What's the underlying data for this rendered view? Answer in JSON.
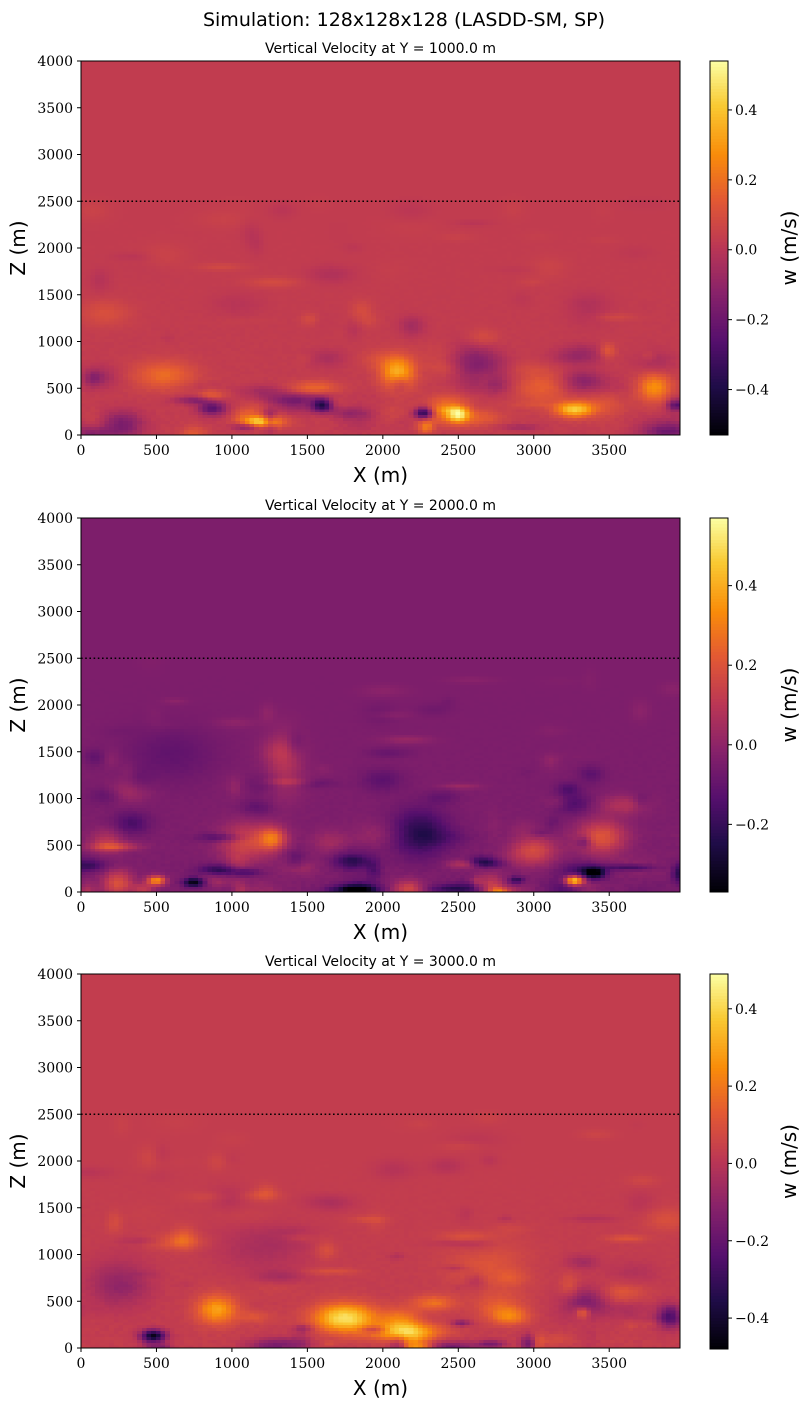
{
  "figure_title": "Simulation: 128x128x128 (LASDD-SM, SP)",
  "colors": {
    "colormap": "inferno",
    "reference_line": "#000000"
  },
  "chart_data": [
    {
      "type": "heatmap",
      "title": "Vertical Velocity at Y = 1000.0 m",
      "xlabel": "X (m)",
      "ylabel": "Z (m)",
      "colorbar_label": "w (m/s)",
      "xlim": [
        0,
        3969
      ],
      "ylim": [
        0,
        4000
      ],
      "xticks": [
        0,
        500,
        1000,
        1500,
        2000,
        2500,
        3000,
        3500
      ],
      "yticks": [
        0,
        500,
        1000,
        1500,
        2000,
        2500,
        3000,
        3500,
        4000
      ],
      "clim": [
        -0.53,
        0.54
      ],
      "cbar_ticks": [
        -0.4,
        -0.2,
        0.0,
        0.2,
        0.4
      ],
      "cbar_tick_labels": [
        "−0.4",
        "−0.2",
        "0.0",
        "0.2",
        "0.4"
      ],
      "reference_line_z": 2500,
      "seed": 11,
      "field": {
        "upper_value": 0.03,
        "boundary_layer_top": 2500,
        "features": [
          {
            "x": 2100,
            "z": 680,
            "sx": 110,
            "sz": 170,
            "w": 0.42
          },
          {
            "x": 1200,
            "z": 150,
            "sx": 130,
            "sz": 60,
            "w": 0.45
          },
          {
            "x": 2500,
            "z": 220,
            "sx": 70,
            "sz": 80,
            "w": 0.4
          },
          {
            "x": 3270,
            "z": 280,
            "sx": 120,
            "sz": 80,
            "w": 0.42
          },
          {
            "x": 3800,
            "z": 520,
            "sx": 110,
            "sz": 150,
            "w": 0.3
          },
          {
            "x": 1600,
            "z": 330,
            "sx": 70,
            "sz": 70,
            "w": -0.5
          },
          {
            "x": 2270,
            "z": 240,
            "sx": 60,
            "sz": 60,
            "w": -0.5
          },
          {
            "x": 870,
            "z": 300,
            "sx": 90,
            "sz": 80,
            "w": -0.35
          },
          {
            "x": 2600,
            "z": 800,
            "sx": 150,
            "sz": 200,
            "w": -0.2
          },
          {
            "x": 1450,
            "z": 380,
            "sx": 220,
            "sz": 70,
            "w": -0.25
          },
          {
            "x": 550,
            "z": 650,
            "sx": 200,
            "sz": 150,
            "w": 0.2
          },
          {
            "x": 3050,
            "z": 520,
            "sx": 180,
            "sz": 180,
            "w": 0.15
          }
        ]
      }
    },
    {
      "type": "heatmap",
      "title": "Vertical Velocity at Y = 2000.0 m",
      "xlabel": "X (m)",
      "ylabel": "Z (m)",
      "colorbar_label": "w (m/s)",
      "xlim": [
        0,
        3969
      ],
      "ylim": [
        0,
        4000
      ],
      "xticks": [
        0,
        500,
        1000,
        1500,
        2000,
        2500,
        3000,
        3500
      ],
      "yticks": [
        0,
        500,
        1000,
        1500,
        2000,
        2500,
        3000,
        3500,
        4000
      ],
      "clim": [
        -0.37,
        0.57
      ],
      "cbar_ticks": [
        -0.2,
        0.0,
        0.2,
        0.4
      ],
      "cbar_tick_labels": [
        "−0.2",
        "0.0",
        "0.2",
        "0.4"
      ],
      "reference_line_z": 2500,
      "seed": 23,
      "field": {
        "upper_value": -0.04,
        "boundary_layer_top": 2500,
        "features": [
          {
            "x": 3270,
            "z": 130,
            "sx": 60,
            "sz": 50,
            "w": 0.55
          },
          {
            "x": 500,
            "z": 130,
            "sx": 60,
            "sz": 50,
            "w": 0.4
          },
          {
            "x": 1350,
            "z": 1400,
            "sx": 120,
            "sz": 350,
            "w": 0.2
          },
          {
            "x": 1100,
            "z": 550,
            "sx": 180,
            "sz": 200,
            "w": 0.25
          },
          {
            "x": 3450,
            "z": 600,
            "sx": 160,
            "sz": 180,
            "w": 0.3
          },
          {
            "x": 2250,
            "z": 650,
            "sx": 180,
            "sz": 250,
            "w": -0.25
          },
          {
            "x": 3400,
            "z": 210,
            "sx": 70,
            "sz": 60,
            "w": -0.35
          },
          {
            "x": 750,
            "z": 110,
            "sx": 70,
            "sz": 50,
            "w": -0.32
          },
          {
            "x": 600,
            "z": 1500,
            "sx": 300,
            "sz": 300,
            "w": -0.12
          },
          {
            "x": 3000,
            "z": 450,
            "sx": 150,
            "sz": 150,
            "w": 0.25
          },
          {
            "x": 1800,
            "z": 350,
            "sx": 120,
            "sz": 100,
            "w": -0.22
          }
        ]
      }
    },
    {
      "type": "heatmap",
      "title": "Vertical Velocity at Y = 3000.0 m",
      "xlabel": "X (m)",
      "ylabel": "Z (m)",
      "colorbar_label": "w (m/s)",
      "xlim": [
        0,
        3969
      ],
      "ylim": [
        0,
        4000
      ],
      "xticks": [
        0,
        500,
        1000,
        1500,
        2000,
        2500,
        3000,
        3500
      ],
      "yticks": [
        0,
        500,
        1000,
        1500,
        2000,
        2500,
        3000,
        3500,
        4000
      ],
      "clim": [
        -0.48,
        0.49
      ],
      "cbar_ticks": [
        -0.4,
        -0.2,
        0.0,
        0.2,
        0.4
      ],
      "cbar_tick_labels": [
        "−0.4",
        "−0.2",
        "0.0",
        "0.2",
        "0.4"
      ],
      "reference_line_z": 2500,
      "seed": 37,
      "field": {
        "upper_value": 0.03,
        "boundary_layer_top": 2500,
        "features": [
          {
            "x": 1750,
            "z": 330,
            "sx": 200,
            "sz": 150,
            "w": 0.45
          },
          {
            "x": 2150,
            "z": 180,
            "sx": 220,
            "sz": 90,
            "w": 0.35
          },
          {
            "x": 900,
            "z": 420,
            "sx": 130,
            "sz": 150,
            "w": 0.3
          },
          {
            "x": 480,
            "z": 140,
            "sx": 80,
            "sz": 60,
            "w": -0.45
          },
          {
            "x": 3900,
            "z": 350,
            "sx": 80,
            "sz": 120,
            "w": -0.3
          },
          {
            "x": 3350,
            "z": 500,
            "sx": 150,
            "sz": 150,
            "w": -0.2
          },
          {
            "x": 250,
            "z": 700,
            "sx": 200,
            "sz": 250,
            "w": -0.15
          },
          {
            "x": 1200,
            "z": 1100,
            "sx": 300,
            "sz": 250,
            "w": -0.1
          },
          {
            "x": 2700,
            "z": 900,
            "sx": 250,
            "sz": 250,
            "w": 0.12
          }
        ]
      }
    }
  ]
}
